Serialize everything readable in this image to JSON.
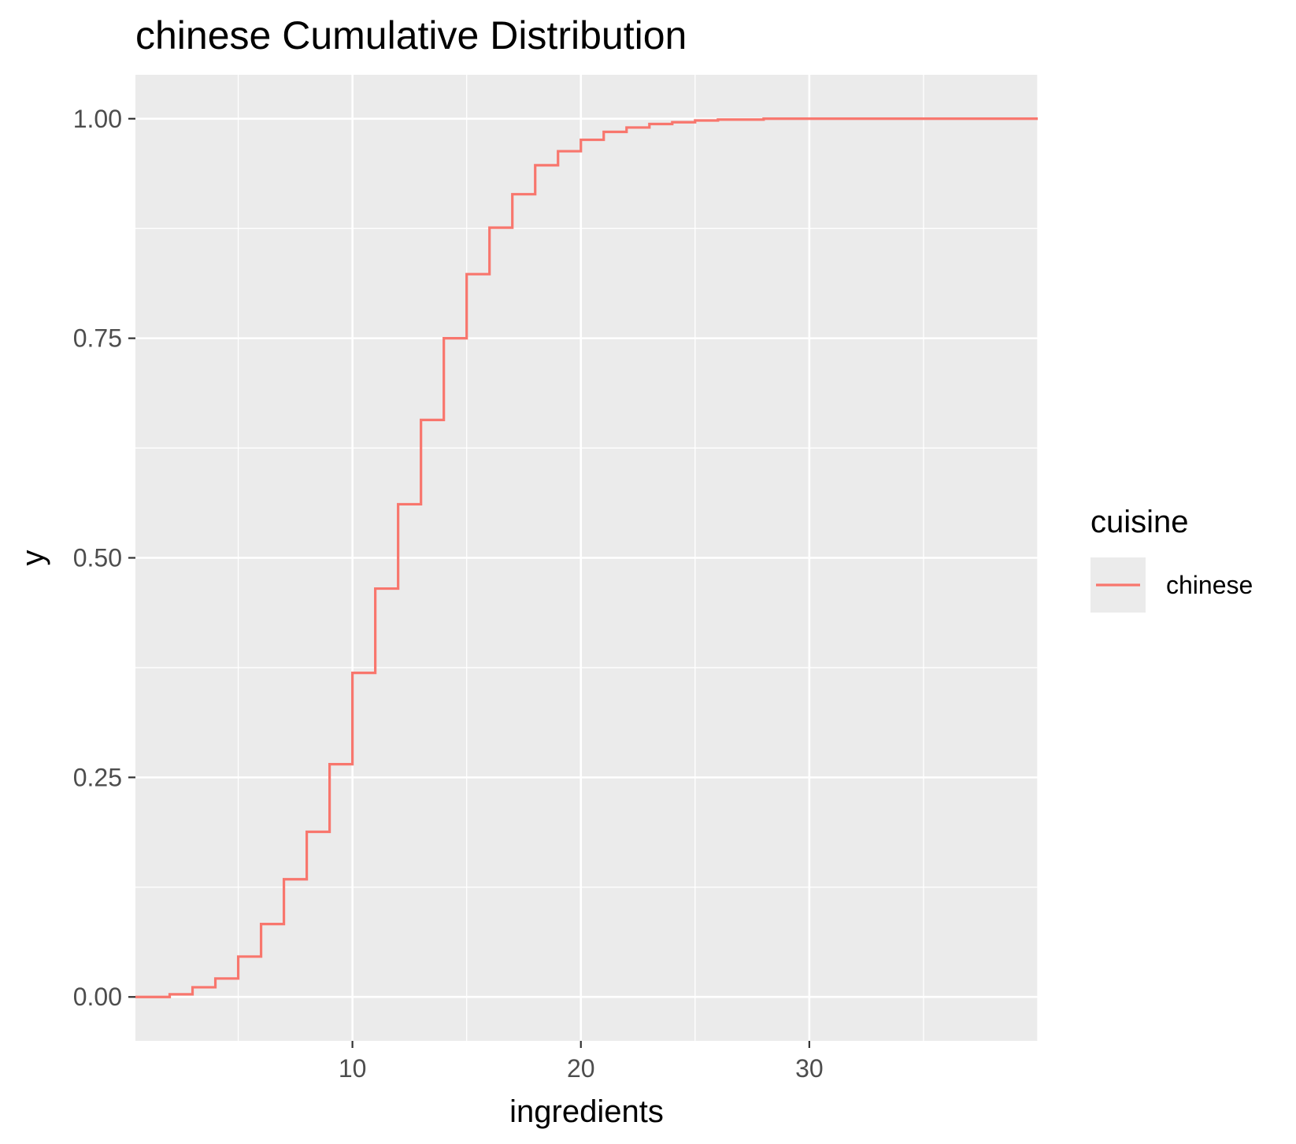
{
  "chart_data": {
    "type": "line",
    "subtype": "ecdf-step",
    "title": "chinese Cumulative Distribution",
    "xlabel": "ingredients",
    "ylabel": "y",
    "xlim": [
      0.5,
      40
    ],
    "ylim": [
      -0.05,
      1.05
    ],
    "x_ticks": [
      10,
      20,
      30
    ],
    "y_ticks": [
      0.0,
      0.25,
      0.5,
      0.75,
      1.0
    ],
    "x_tick_labels": [
      "10",
      "20",
      "30"
    ],
    "y_tick_labels": [
      "0.00",
      "0.25",
      "0.50",
      "0.75",
      "1.00"
    ],
    "grid": true,
    "legend": {
      "title": "cuisine",
      "position": "right",
      "entries": [
        "chinese"
      ]
    },
    "colors": {
      "panel_background": "#ebebeb",
      "grid": "#ffffff",
      "series": "#f8766d"
    },
    "series": [
      {
        "name": "chinese",
        "x": [
          0.5,
          2,
          3,
          4,
          5,
          6,
          7,
          8,
          9,
          10,
          11,
          12,
          13,
          14,
          15,
          16,
          17,
          18,
          19,
          20,
          21,
          22,
          23,
          24,
          25,
          26,
          28,
          30,
          40
        ],
        "y": [
          0.0,
          0.003,
          0.011,
          0.021,
          0.046,
          0.083,
          0.134,
          0.188,
          0.265,
          0.369,
          0.465,
          0.561,
          0.657,
          0.75,
          0.823,
          0.876,
          0.914,
          0.947,
          0.963,
          0.976,
          0.985,
          0.99,
          0.994,
          0.996,
          0.998,
          0.999,
          1.0,
          1.0,
          1.0
        ]
      }
    ]
  }
}
